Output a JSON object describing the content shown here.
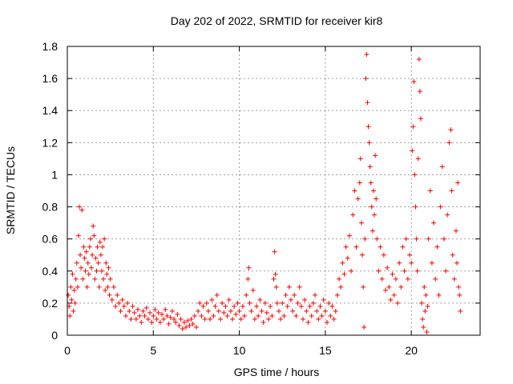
{
  "chart_data": {
    "type": "scatter",
    "title": "Day 202 of 2022, SRMTID for receiver kir8",
    "xlabel": "GPS time / hours",
    "ylabel": "SRMTID / TECUs",
    "xlim": [
      0,
      24
    ],
    "ylim": [
      0,
      1.8
    ],
    "xticks": [
      0,
      5,
      10,
      15,
      20
    ],
    "xtick_labels": [
      "0",
      "5",
      "10",
      "15",
      "20"
    ],
    "yticks": [
      0,
      0.2,
      0.4,
      0.6,
      0.8,
      1.0,
      1.2,
      1.4,
      1.6,
      1.8
    ],
    "ytick_labels": [
      "0",
      "0.2",
      "0.4",
      "0.6",
      "0.8",
      "1",
      "1.2",
      "1.4",
      "1.6",
      "1.8"
    ],
    "grid": true,
    "marker": "+",
    "marker_color": "#ff0000",
    "series": [
      {
        "name": "kir8",
        "points": [
          [
            0.05,
            0.25
          ],
          [
            0.1,
            0.18
          ],
          [
            0.15,
            0.12
          ],
          [
            0.2,
            0.3
          ],
          [
            0.25,
            0.22
          ],
          [
            0.3,
            0.38
          ],
          [
            0.35,
            0.15
          ],
          [
            0.4,
            0.28
          ],
          [
            0.45,
            0.2
          ],
          [
            0.5,
            0.35
          ],
          [
            0.55,
            0.45
          ],
          [
            0.6,
            0.3
          ],
          [
            0.65,
            0.62
          ],
          [
            0.7,
            0.8
          ],
          [
            0.75,
            0.5
          ],
          [
            0.8,
            0.42
          ],
          [
            0.85,
            0.78
          ],
          [
            0.9,
            0.35
          ],
          [
            0.95,
            0.55
          ],
          [
            1.0,
            0.48
          ],
          [
            1.05,
            0.4
          ],
          [
            1.1,
            0.52
          ],
          [
            1.15,
            0.3
          ],
          [
            1.2,
            0.45
          ],
          [
            1.25,
            0.38
          ],
          [
            1.3,
            0.55
          ],
          [
            1.35,
            0.6
          ],
          [
            1.4,
            0.42
          ],
          [
            1.45,
            0.5
          ],
          [
            1.5,
            0.68
          ],
          [
            1.55,
            0.62
          ],
          [
            1.6,
            0.35
          ],
          [
            1.65,
            0.48
          ],
          [
            1.7,
            0.4
          ],
          [
            1.75,
            0.55
          ],
          [
            1.8,
            0.45
          ],
          [
            1.85,
            0.3
          ],
          [
            1.9,
            0.58
          ],
          [
            1.95,
            0.5
          ],
          [
            2.0,
            0.4
          ],
          [
            2.05,
            0.55
          ],
          [
            2.1,
            0.35
          ],
          [
            2.15,
            0.6
          ],
          [
            2.2,
            0.28
          ],
          [
            2.25,
            0.45
          ],
          [
            2.3,
            0.38
          ],
          [
            2.35,
            0.3
          ],
          [
            2.4,
            0.42
          ],
          [
            2.45,
            0.25
          ],
          [
            2.5,
            0.35
          ],
          [
            2.6,
            0.22
          ],
          [
            2.7,
            0.3
          ],
          [
            2.8,
            0.18
          ],
          [
            2.9,
            0.25
          ],
          [
            3.0,
            0.2
          ],
          [
            3.1,
            0.15
          ],
          [
            3.2,
            0.22
          ],
          [
            3.3,
            0.18
          ],
          [
            3.4,
            0.12
          ],
          [
            3.5,
            0.2
          ],
          [
            3.6,
            0.15
          ],
          [
            3.7,
            0.1
          ],
          [
            3.8,
            0.18
          ],
          [
            3.9,
            0.14
          ],
          [
            4.0,
            0.1
          ],
          [
            4.1,
            0.16
          ],
          [
            4.2,
            0.12
          ],
          [
            4.3,
            0.08
          ],
          [
            4.4,
            0.15
          ],
          [
            4.5,
            0.12
          ],
          [
            4.6,
            0.17
          ],
          [
            4.7,
            0.1
          ],
          [
            4.8,
            0.14
          ],
          [
            4.9,
            0.08
          ],
          [
            5.0,
            0.12
          ],
          [
            5.1,
            0.16
          ],
          [
            5.2,
            0.1
          ],
          [
            5.3,
            0.14
          ],
          [
            5.4,
            0.08
          ],
          [
            5.5,
            0.13
          ],
          [
            5.6,
            0.1
          ],
          [
            5.7,
            0.16
          ],
          [
            5.8,
            0.12
          ],
          [
            5.9,
            0.07
          ],
          [
            6.0,
            0.11
          ],
          [
            6.1,
            0.15
          ],
          [
            6.2,
            0.1
          ],
          [
            6.3,
            0.08
          ],
          [
            6.4,
            0.13
          ],
          [
            6.5,
            0.06
          ],
          [
            6.6,
            0.1
          ],
          [
            6.7,
            0.04
          ],
          [
            6.8,
            0.08
          ],
          [
            6.9,
            0.05
          ],
          [
            7.0,
            0.09
          ],
          [
            7.1,
            0.06
          ],
          [
            7.2,
            0.1
          ],
          [
            7.3,
            0.07
          ],
          [
            7.4,
            0.12
          ],
          [
            7.5,
            0.05
          ],
          [
            7.6,
            0.15
          ],
          [
            7.7,
            0.2
          ],
          [
            7.8,
            0.12
          ],
          [
            7.9,
            0.18
          ],
          [
            8.0,
            0.1
          ],
          [
            8.1,
            0.2
          ],
          [
            8.2,
            0.15
          ],
          [
            8.3,
            0.1
          ],
          [
            8.4,
            0.22
          ],
          [
            8.5,
            0.12
          ],
          [
            8.6,
            0.18
          ],
          [
            8.7,
            0.25
          ],
          [
            8.8,
            0.15
          ],
          [
            8.9,
            0.1
          ],
          [
            9.0,
            0.2
          ],
          [
            9.1,
            0.14
          ],
          [
            9.2,
            0.18
          ],
          [
            9.3,
            0.12
          ],
          [
            9.4,
            0.22
          ],
          [
            9.5,
            0.15
          ],
          [
            9.6,
            0.1
          ],
          [
            9.7,
            0.18
          ],
          [
            9.8,
            0.13
          ],
          [
            9.9,
            0.2
          ],
          [
            10.0,
            0.15
          ],
          [
            10.1,
            0.1
          ],
          [
            10.2,
            0.18
          ],
          [
            10.3,
            0.12
          ],
          [
            10.4,
            0.25
          ],
          [
            10.5,
            0.35
          ],
          [
            10.55,
            0.42
          ],
          [
            10.6,
            0.2
          ],
          [
            10.7,
            0.15
          ],
          [
            10.8,
            0.28
          ],
          [
            10.9,
            0.1
          ],
          [
            11.0,
            0.18
          ],
          [
            11.1,
            0.12
          ],
          [
            11.2,
            0.22
          ],
          [
            11.3,
            0.15
          ],
          [
            11.4,
            0.08
          ],
          [
            11.5,
            0.2
          ],
          [
            11.6,
            0.14
          ],
          [
            11.7,
            0.1
          ],
          [
            11.8,
            0.18
          ],
          [
            11.9,
            0.12
          ],
          [
            12.0,
            0.35
          ],
          [
            12.05,
            0.52
          ],
          [
            12.1,
            0.38
          ],
          [
            12.15,
            0.3
          ],
          [
            12.2,
            0.2
          ],
          [
            12.3,
            0.15
          ],
          [
            12.4,
            0.1
          ],
          [
            12.5,
            0.2
          ],
          [
            12.6,
            0.12
          ],
          [
            12.7,
            0.25
          ],
          [
            12.8,
            0.18
          ],
          [
            12.9,
            0.3
          ],
          [
            13.0,
            0.22
          ],
          [
            13.1,
            0.15
          ],
          [
            13.2,
            0.25
          ],
          [
            13.3,
            0.12
          ],
          [
            13.4,
            0.2
          ],
          [
            13.5,
            0.3
          ],
          [
            13.6,
            0.18
          ],
          [
            13.7,
            0.1
          ],
          [
            13.8,
            0.22
          ],
          [
            13.9,
            0.15
          ],
          [
            14.0,
            0.08
          ],
          [
            14.1,
            0.18
          ],
          [
            14.2,
            0.12
          ],
          [
            14.3,
            0.2
          ],
          [
            14.4,
            0.25
          ],
          [
            14.5,
            0.15
          ],
          [
            14.6,
            0.1
          ],
          [
            14.7,
            0.18
          ],
          [
            14.8,
            0.12
          ],
          [
            14.9,
            0.22
          ],
          [
            15.0,
            0.15
          ],
          [
            15.1,
            0.08
          ],
          [
            15.2,
            0.2
          ],
          [
            15.3,
            0.12
          ],
          [
            15.4,
            0.18
          ],
          [
            15.5,
            0.1
          ],
          [
            15.6,
            0.15
          ],
          [
            15.7,
            0.25
          ],
          [
            15.8,
            0.35
          ],
          [
            15.9,
            0.3
          ],
          [
            16.0,
            0.45
          ],
          [
            16.1,
            0.38
          ],
          [
            16.2,
            0.55
          ],
          [
            16.3,
            0.48
          ],
          [
            16.4,
            0.62
          ],
          [
            16.5,
            0.4
          ],
          [
            16.6,
            0.75
          ],
          [
            16.7,
            0.9
          ],
          [
            16.8,
            0.55
          ],
          [
            16.9,
            0.85
          ],
          [
            17.0,
            0.95
          ],
          [
            17.05,
            1.1
          ],
          [
            17.1,
            0.7
          ],
          [
            17.15,
            0.5
          ],
          [
            17.2,
            0.3
          ],
          [
            17.25,
            0.05
          ],
          [
            17.3,
            0.6
          ],
          [
            17.35,
            1.6
          ],
          [
            17.4,
            1.75
          ],
          [
            17.45,
            1.45
          ],
          [
            17.5,
            1.3
          ],
          [
            17.55,
            1.2
          ],
          [
            17.6,
            1.05
          ],
          [
            17.65,
            0.95
          ],
          [
            17.7,
            0.8
          ],
          [
            17.75,
            0.65
          ],
          [
            17.8,
            0.9
          ],
          [
            17.85,
            0.75
          ],
          [
            17.9,
            1.12
          ],
          [
            17.95,
            0.85
          ],
          [
            18.0,
            0.6
          ],
          [
            18.1,
            0.4
          ],
          [
            18.2,
            0.55
          ],
          [
            18.3,
            0.35
          ],
          [
            18.4,
            0.5
          ],
          [
            18.5,
            0.28
          ],
          [
            18.6,
            0.42
          ],
          [
            18.7,
            0.3
          ],
          [
            18.8,
            0.22
          ],
          [
            18.9,
            0.38
          ],
          [
            19.0,
            0.25
          ],
          [
            19.1,
            0.35
          ],
          [
            19.2,
            0.2
          ],
          [
            19.3,
            0.45
          ],
          [
            19.4,
            0.3
          ],
          [
            19.5,
            0.55
          ],
          [
            19.6,
            0.4
          ],
          [
            19.7,
            0.6
          ],
          [
            19.8,
            0.35
          ],
          [
            19.9,
            0.5
          ],
          [
            20.0,
            0.45
          ],
          [
            20.05,
            1.15
          ],
          [
            20.1,
            1.3
          ],
          [
            20.15,
            1.58
          ],
          [
            20.2,
            1.0
          ],
          [
            20.25,
            0.8
          ],
          [
            20.3,
            0.6
          ],
          [
            20.35,
            0.4
          ],
          [
            20.4,
            1.1
          ],
          [
            20.45,
            1.72
          ],
          [
            20.5,
            1.52
          ],
          [
            20.55,
            1.35
          ],
          [
            20.6,
            0.2
          ],
          [
            20.65,
            0.1
          ],
          [
            20.7,
            0.05
          ],
          [
            20.75,
            0.3
          ],
          [
            20.8,
            0.15
          ],
          [
            20.85,
            0.25
          ],
          [
            20.9,
            0.02
          ],
          [
            20.95,
            0.18
          ],
          [
            21.0,
            0.6
          ],
          [
            21.1,
            0.9
          ],
          [
            21.2,
            0.45
          ],
          [
            21.3,
            0.7
          ],
          [
            21.4,
            0.35
          ],
          [
            21.5,
            0.55
          ],
          [
            21.6,
            0.25
          ],
          [
            21.7,
            0.8
          ],
          [
            21.8,
            1.05
          ],
          [
            21.9,
            0.6
          ],
          [
            22.0,
            0.4
          ],
          [
            22.1,
            0.75
          ],
          [
            22.2,
            1.2
          ],
          [
            22.3,
            1.28
          ],
          [
            22.35,
            0.9
          ],
          [
            22.4,
            0.5
          ],
          [
            22.5,
            0.35
          ],
          [
            22.6,
            0.65
          ],
          [
            22.65,
            0.45
          ],
          [
            22.7,
            0.95
          ],
          [
            22.75,
            0.3
          ],
          [
            22.8,
            0.25
          ],
          [
            22.85,
            0.15
          ]
        ]
      }
    ]
  }
}
